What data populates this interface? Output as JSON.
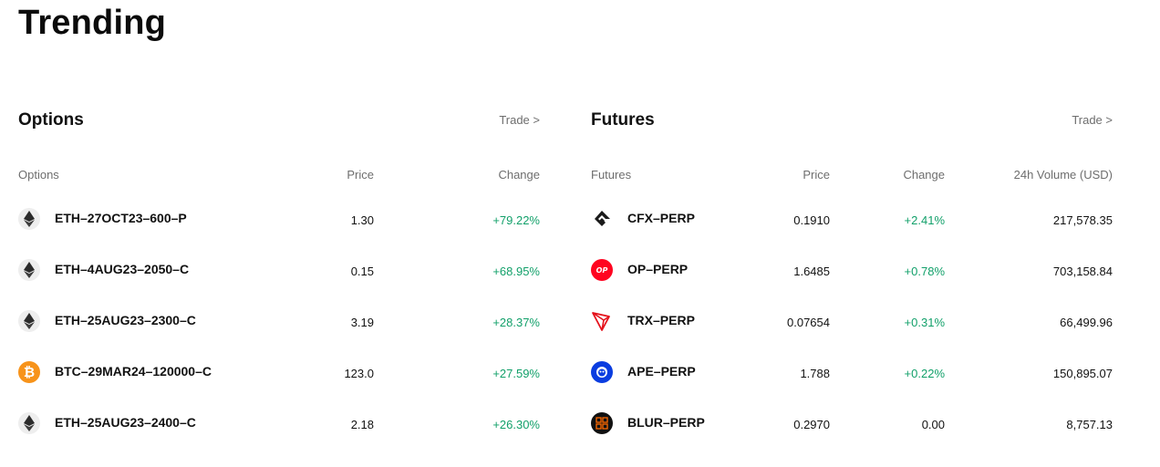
{
  "page": {
    "title": "Trending"
  },
  "options": {
    "title": "Options",
    "trade_label": "Trade >",
    "columns": {
      "name": "Options",
      "price": "Price",
      "change": "Change"
    },
    "rows": [
      {
        "icon": "ethereum-icon",
        "name": "ETH–27OCT23–600–P",
        "price": "1.30",
        "change": "+79.22%"
      },
      {
        "icon": "ethereum-icon",
        "name": "ETH–4AUG23–2050–C",
        "price": "0.15",
        "change": "+68.95%"
      },
      {
        "icon": "ethereum-icon",
        "name": "ETH–25AUG23–2300–C",
        "price": "3.19",
        "change": "+28.37%"
      },
      {
        "icon": "bitcoin-icon",
        "name": "BTC–29MAR24–120000–C",
        "price": "123.0",
        "change": "+27.59%"
      },
      {
        "icon": "ethereum-icon",
        "name": "ETH–25AUG23–2400–C",
        "price": "2.18",
        "change": "+26.30%"
      }
    ]
  },
  "futures": {
    "title": "Futures",
    "trade_label": "Trade >",
    "columns": {
      "name": "Futures",
      "price": "Price",
      "change": "Change",
      "volume": "24h Volume (USD)"
    },
    "rows": [
      {
        "icon": "conflux-icon",
        "name": "CFX–PERP",
        "price": "0.1910",
        "change": "+2.41%",
        "volume": "217,578.35"
      },
      {
        "icon": "optimism-icon",
        "name": "OP–PERP",
        "price": "1.6485",
        "change": "+0.78%",
        "volume": "703,158.84",
        "icon_text": "OP"
      },
      {
        "icon": "tron-icon",
        "name": "TRX–PERP",
        "price": "0.07654",
        "change": "+0.31%",
        "volume": "66,499.96"
      },
      {
        "icon": "apecoin-icon",
        "name": "APE–PERP",
        "price": "1.788",
        "change": "+0.22%",
        "volume": "150,895.07"
      },
      {
        "icon": "blur-icon",
        "name": "BLUR–PERP",
        "price": "0.2970",
        "change": "0.00",
        "volume": "8,757.13"
      }
    ]
  },
  "colors": {
    "positive": "#12a06a",
    "muted": "#6e6e6e",
    "text": "#111111"
  }
}
